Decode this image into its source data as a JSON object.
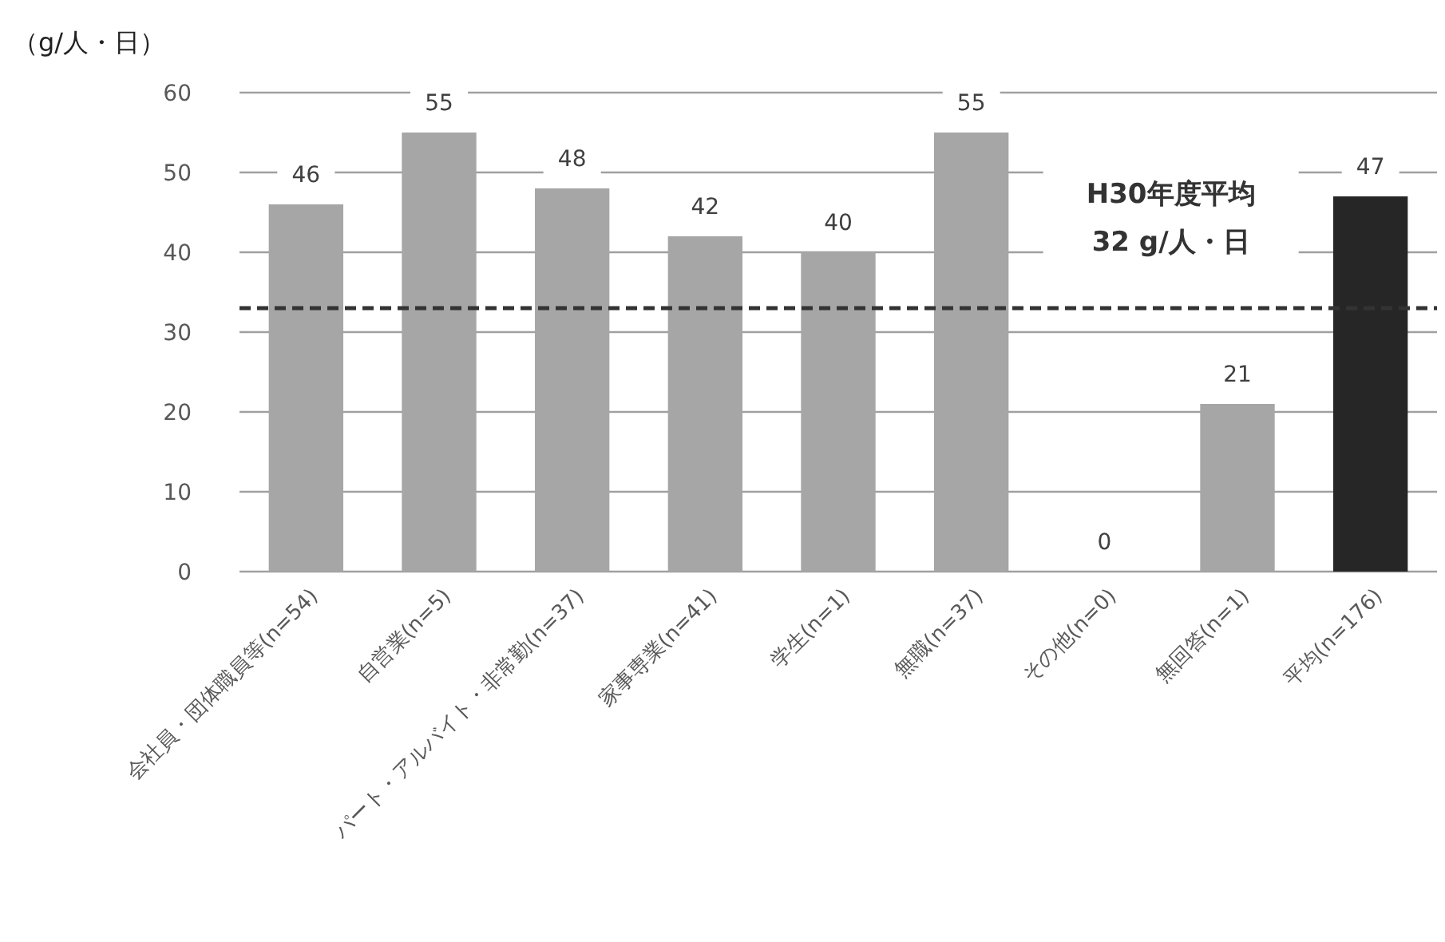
{
  "chart_data": {
    "type": "bar",
    "ylabel": "（g/人・日）",
    "categories": [
      "会社員・団体職員等(n=54)",
      "自営業(n=5)",
      "パート・アルバイト・非常勤(n=37)",
      "家事専業(n=41)",
      "学生(n=1)",
      "無職(n=37)",
      "その他(n=0)",
      "無回答(n=1)",
      "平均(n=176)"
    ],
    "values": [
      46,
      55,
      48,
      42,
      40,
      55,
      0,
      21,
      47
    ],
    "colors": [
      "#a6a6a6",
      "#a6a6a6",
      "#a6a6a6",
      "#a6a6a6",
      "#a6a6a6",
      "#a6a6a6",
      "#a6a6a6",
      "#a6a6a6",
      "#262626"
    ],
    "ylim": [
      0,
      60
    ],
    "yticks": [
      0,
      10,
      20,
      30,
      40,
      50,
      60
    ],
    "grid": "y",
    "data_labels": true,
    "ref_lines": [
      {
        "axis": "y",
        "value": 33,
        "label": "H30年度平均\n32 g/人・日",
        "color": "#333333",
        "line_style": "dashed"
      }
    ]
  }
}
